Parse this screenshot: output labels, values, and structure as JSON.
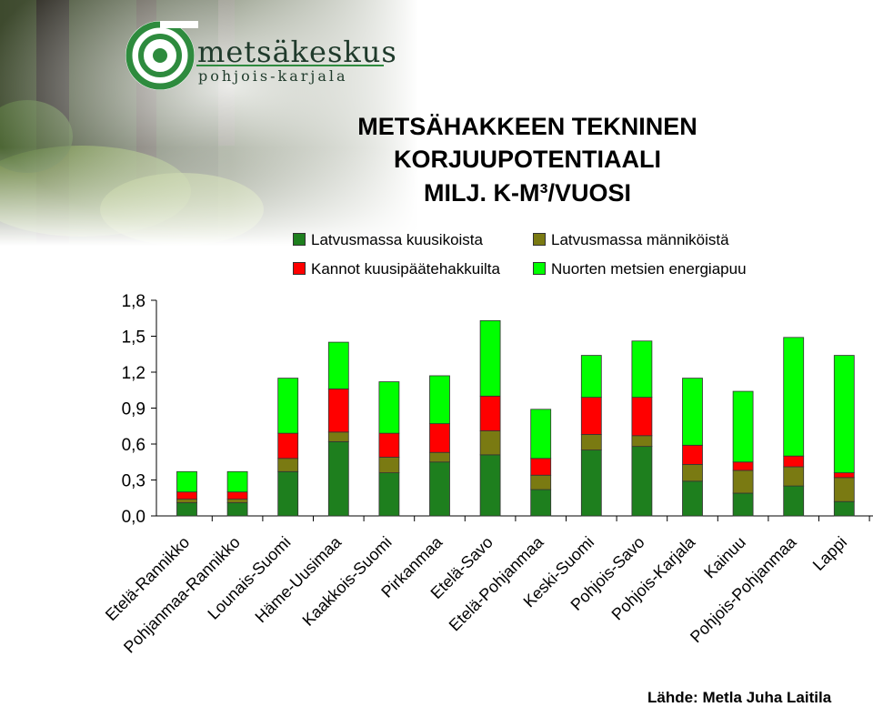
{
  "logo": {
    "name": "metsäkeskus",
    "region": "pohjois-karjala"
  },
  "title": {
    "line1": "METSÄHAKKEEN TEKNINEN",
    "line2": "KORJUUPOTENTIAALI",
    "line3": "MILJ. K-M³/VUOSI"
  },
  "colors": {
    "latvus_kuusi": "#1e7f1e",
    "latvus_manty": "#7a7a12",
    "kannot": "#ff0000",
    "nuoret": "#00ff00"
  },
  "source": "Lähde: Metla Juha Laitila",
  "chart_data": {
    "type": "bar",
    "stacked": true,
    "categories": [
      "Etelä-Rannikko",
      "Pohjanmaa-Rannikko",
      "Lounais-Suomi",
      "Häme-Uusimaa",
      "Kaakkois-Suomi",
      "Pirkanmaa",
      "Etelä-Savo",
      "Etelä-Pohjanmaa",
      "Keski-Suomi",
      "Pohjois-Savo",
      "Pohjois-Karjala",
      "Kainuu",
      "Pohjois-Pohjanmaa",
      "Lappi"
    ],
    "series": [
      {
        "name": "Latvusmassa kuusikoista",
        "color": "#1e7f1e",
        "values": [
          0.11,
          0.11,
          0.37,
          0.62,
          0.36,
          0.45,
          0.51,
          0.22,
          0.55,
          0.58,
          0.29,
          0.19,
          0.25,
          0.12
        ]
      },
      {
        "name": "Latvusmassa männiköistä",
        "color": "#7a7a12",
        "values": [
          0.03,
          0.03,
          0.11,
          0.08,
          0.13,
          0.08,
          0.2,
          0.12,
          0.13,
          0.09,
          0.14,
          0.19,
          0.16,
          0.2
        ]
      },
      {
        "name": "Kannot kuusipäätehakkuilta",
        "color": "#ff0000",
        "values": [
          0.06,
          0.06,
          0.21,
          0.36,
          0.2,
          0.24,
          0.29,
          0.14,
          0.31,
          0.32,
          0.16,
          0.07,
          0.09,
          0.04
        ]
      },
      {
        "name": "Nuorten metsien energiapuu",
        "color": "#00ff00",
        "values": [
          0.17,
          0.17,
          0.46,
          0.39,
          0.43,
          0.4,
          0.63,
          0.41,
          0.35,
          0.47,
          0.56,
          0.59,
          0.99,
          0.98
        ]
      }
    ],
    "yticks": [
      "0,0",
      "0,3",
      "0,6",
      "0,9",
      "1,2",
      "1,5",
      "1,8"
    ],
    "ylim": [
      0,
      1.8
    ],
    "grid": false,
    "legend": "top"
  }
}
